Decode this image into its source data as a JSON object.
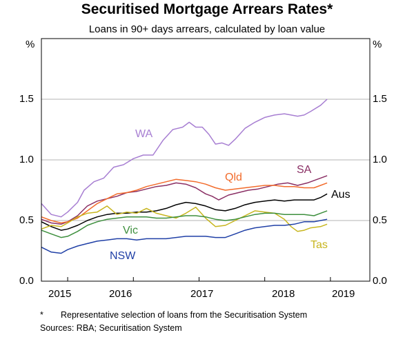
{
  "chart_data": {
    "type": "line",
    "title": "Securitised Mortgage Arrears Rates*",
    "subtitle": "Loans in 90+ days arrears, calculated by loan value",
    "ylabel_left": "%",
    "ylabel_right": "%",
    "ylim": [
      0,
      2.0
    ],
    "yticks": [
      "0.0",
      "0.5",
      "1.0",
      "1.5"
    ],
    "xlim": [
      2014.6,
      2019.6
    ],
    "xticks": [
      "2015",
      "2016",
      "2017",
      "2018",
      "2019"
    ],
    "grid": true,
    "series": [
      {
        "name": "WA",
        "color": "#a77ed2",
        "points": [
          [
            2014.6,
            0.64
          ],
          [
            2014.75,
            0.55
          ],
          [
            2014.9,
            0.53
          ],
          [
            2015.0,
            0.57
          ],
          [
            2015.15,
            0.65
          ],
          [
            2015.25,
            0.75
          ],
          [
            2015.4,
            0.82
          ],
          [
            2015.55,
            0.85
          ],
          [
            2015.7,
            0.94
          ],
          [
            2015.85,
            0.96
          ],
          [
            2016.0,
            1.01
          ],
          [
            2016.15,
            1.04
          ],
          [
            2016.3,
            1.04
          ],
          [
            2016.45,
            1.16
          ],
          [
            2016.6,
            1.25
          ],
          [
            2016.75,
            1.27
          ],
          [
            2016.85,
            1.31
          ],
          [
            2016.95,
            1.27
          ],
          [
            2017.05,
            1.27
          ],
          [
            2017.15,
            1.21
          ],
          [
            2017.25,
            1.13
          ],
          [
            2017.35,
            1.14
          ],
          [
            2017.45,
            1.12
          ],
          [
            2017.55,
            1.17
          ],
          [
            2017.7,
            1.26
          ],
          [
            2017.85,
            1.31
          ],
          [
            2018.0,
            1.35
          ],
          [
            2018.15,
            1.37
          ],
          [
            2018.3,
            1.38
          ],
          [
            2018.4,
            1.37
          ],
          [
            2018.5,
            1.36
          ],
          [
            2018.6,
            1.37
          ],
          [
            2018.7,
            1.4
          ],
          [
            2018.85,
            1.45
          ],
          [
            2018.95,
            1.5
          ]
        ]
      },
      {
        "name": "SA",
        "color": "#8a2f64",
        "points": [
          [
            2014.6,
            0.51
          ],
          [
            2014.75,
            0.48
          ],
          [
            2014.9,
            0.47
          ],
          [
            2015.0,
            0.49
          ],
          [
            2015.15,
            0.54
          ],
          [
            2015.3,
            0.62
          ],
          [
            2015.45,
            0.66
          ],
          [
            2015.6,
            0.68
          ],
          [
            2015.75,
            0.7
          ],
          [
            2015.9,
            0.73
          ],
          [
            2016.05,
            0.74
          ],
          [
            2016.2,
            0.76
          ],
          [
            2016.35,
            0.78
          ],
          [
            2016.5,
            0.79
          ],
          [
            2016.65,
            0.81
          ],
          [
            2016.8,
            0.8
          ],
          [
            2016.95,
            0.77
          ],
          [
            2017.1,
            0.72
          ],
          [
            2017.2,
            0.7
          ],
          [
            2017.3,
            0.67
          ],
          [
            2017.45,
            0.71
          ],
          [
            2017.6,
            0.73
          ],
          [
            2017.75,
            0.75
          ],
          [
            2017.9,
            0.76
          ],
          [
            2018.05,
            0.78
          ],
          [
            2018.2,
            0.8
          ],
          [
            2018.35,
            0.81
          ],
          [
            2018.5,
            0.79
          ],
          [
            2018.65,
            0.81
          ],
          [
            2018.8,
            0.84
          ],
          [
            2018.95,
            0.87
          ]
        ]
      },
      {
        "name": "Qld",
        "color": "#f26b2b",
        "points": [
          [
            2014.6,
            0.53
          ],
          [
            2014.75,
            0.5
          ],
          [
            2014.9,
            0.48
          ],
          [
            2015.0,
            0.49
          ],
          [
            2015.15,
            0.52
          ],
          [
            2015.3,
            0.58
          ],
          [
            2015.45,
            0.64
          ],
          [
            2015.6,
            0.68
          ],
          [
            2015.75,
            0.72
          ],
          [
            2015.9,
            0.73
          ],
          [
            2016.05,
            0.75
          ],
          [
            2016.2,
            0.78
          ],
          [
            2016.35,
            0.8
          ],
          [
            2016.5,
            0.82
          ],
          [
            2016.65,
            0.84
          ],
          [
            2016.8,
            0.83
          ],
          [
            2016.95,
            0.82
          ],
          [
            2017.1,
            0.8
          ],
          [
            2017.25,
            0.77
          ],
          [
            2017.4,
            0.75
          ],
          [
            2017.55,
            0.76
          ],
          [
            2017.7,
            0.77
          ],
          [
            2017.85,
            0.78
          ],
          [
            2018.0,
            0.79
          ],
          [
            2018.15,
            0.79
          ],
          [
            2018.3,
            0.78
          ],
          [
            2018.45,
            0.78
          ],
          [
            2018.6,
            0.77
          ],
          [
            2018.75,
            0.77
          ],
          [
            2018.85,
            0.79
          ],
          [
            2018.95,
            0.81
          ]
        ]
      },
      {
        "name": "Aus",
        "color": "#000000",
        "points": [
          [
            2014.6,
            0.49
          ],
          [
            2014.75,
            0.45
          ],
          [
            2014.9,
            0.42
          ],
          [
            2015.0,
            0.43
          ],
          [
            2015.15,
            0.46
          ],
          [
            2015.3,
            0.5
          ],
          [
            2015.45,
            0.53
          ],
          [
            2015.6,
            0.55
          ],
          [
            2015.75,
            0.56
          ],
          [
            2015.9,
            0.56
          ],
          [
            2016.05,
            0.57
          ],
          [
            2016.2,
            0.57
          ],
          [
            2016.35,
            0.58
          ],
          [
            2016.5,
            0.6
          ],
          [
            2016.65,
            0.63
          ],
          [
            2016.8,
            0.65
          ],
          [
            2016.95,
            0.64
          ],
          [
            2017.1,
            0.62
          ],
          [
            2017.25,
            0.59
          ],
          [
            2017.4,
            0.58
          ],
          [
            2017.55,
            0.6
          ],
          [
            2017.7,
            0.63
          ],
          [
            2017.85,
            0.65
          ],
          [
            2018.0,
            0.66
          ],
          [
            2018.15,
            0.67
          ],
          [
            2018.3,
            0.66
          ],
          [
            2018.45,
            0.67
          ],
          [
            2018.6,
            0.67
          ],
          [
            2018.75,
            0.67
          ],
          [
            2018.85,
            0.69
          ],
          [
            2018.95,
            0.72
          ]
        ]
      },
      {
        "name": "Tas",
        "color": "#c7b51d",
        "points": [
          [
            2014.6,
            0.43
          ],
          [
            2014.75,
            0.46
          ],
          [
            2014.9,
            0.45
          ],
          [
            2015.0,
            0.48
          ],
          [
            2015.15,
            0.53
          ],
          [
            2015.3,
            0.56
          ],
          [
            2015.45,
            0.57
          ],
          [
            2015.6,
            0.62
          ],
          [
            2015.75,
            0.55
          ],
          [
            2015.9,
            0.57
          ],
          [
            2016.05,
            0.56
          ],
          [
            2016.2,
            0.6
          ],
          [
            2016.35,
            0.56
          ],
          [
            2016.5,
            0.54
          ],
          [
            2016.65,
            0.52
          ],
          [
            2016.8,
            0.56
          ],
          [
            2016.95,
            0.61
          ],
          [
            2017.1,
            0.52
          ],
          [
            2017.25,
            0.45
          ],
          [
            2017.4,
            0.46
          ],
          [
            2017.55,
            0.5
          ],
          [
            2017.7,
            0.54
          ],
          [
            2017.85,
            0.58
          ],
          [
            2018.0,
            0.57
          ],
          [
            2018.15,
            0.56
          ],
          [
            2018.3,
            0.51
          ],
          [
            2018.4,
            0.45
          ],
          [
            2018.5,
            0.41
          ],
          [
            2018.6,
            0.42
          ],
          [
            2018.7,
            0.44
          ],
          [
            2018.85,
            0.45
          ],
          [
            2018.95,
            0.47
          ]
        ]
      },
      {
        "name": "Vic",
        "color": "#3d8f3d",
        "points": [
          [
            2014.6,
            0.42
          ],
          [
            2014.75,
            0.39
          ],
          [
            2014.9,
            0.36
          ],
          [
            2015.0,
            0.37
          ],
          [
            2015.15,
            0.41
          ],
          [
            2015.3,
            0.46
          ],
          [
            2015.45,
            0.49
          ],
          [
            2015.6,
            0.51
          ],
          [
            2015.75,
            0.52
          ],
          [
            2015.9,
            0.53
          ],
          [
            2016.05,
            0.53
          ],
          [
            2016.2,
            0.53
          ],
          [
            2016.35,
            0.52
          ],
          [
            2016.5,
            0.52
          ],
          [
            2016.65,
            0.53
          ],
          [
            2016.8,
            0.54
          ],
          [
            2016.95,
            0.54
          ],
          [
            2017.1,
            0.53
          ],
          [
            2017.25,
            0.51
          ],
          [
            2017.4,
            0.5
          ],
          [
            2017.55,
            0.51
          ],
          [
            2017.7,
            0.53
          ],
          [
            2017.85,
            0.55
          ],
          [
            2018.0,
            0.56
          ],
          [
            2018.15,
            0.56
          ],
          [
            2018.3,
            0.55
          ],
          [
            2018.45,
            0.55
          ],
          [
            2018.6,
            0.55
          ],
          [
            2018.75,
            0.54
          ],
          [
            2018.85,
            0.56
          ],
          [
            2018.95,
            0.58
          ]
        ]
      },
      {
        "name": "NSW",
        "color": "#1f3fa6",
        "points": [
          [
            2014.6,
            0.28
          ],
          [
            2014.75,
            0.24
          ],
          [
            2014.9,
            0.23
          ],
          [
            2015.0,
            0.26
          ],
          [
            2015.15,
            0.29
          ],
          [
            2015.3,
            0.31
          ],
          [
            2015.45,
            0.33
          ],
          [
            2015.6,
            0.34
          ],
          [
            2015.75,
            0.35
          ],
          [
            2015.9,
            0.35
          ],
          [
            2016.05,
            0.34
          ],
          [
            2016.2,
            0.35
          ],
          [
            2016.35,
            0.35
          ],
          [
            2016.5,
            0.35
          ],
          [
            2016.65,
            0.36
          ],
          [
            2016.8,
            0.37
          ],
          [
            2016.95,
            0.37
          ],
          [
            2017.1,
            0.37
          ],
          [
            2017.25,
            0.36
          ],
          [
            2017.4,
            0.36
          ],
          [
            2017.55,
            0.39
          ],
          [
            2017.7,
            0.42
          ],
          [
            2017.85,
            0.44
          ],
          [
            2018.0,
            0.45
          ],
          [
            2018.15,
            0.46
          ],
          [
            2018.3,
            0.46
          ],
          [
            2018.45,
            0.47
          ],
          [
            2018.6,
            0.49
          ],
          [
            2018.75,
            0.49
          ],
          [
            2018.85,
            0.5
          ],
          [
            2018.95,
            0.51
          ]
        ]
      }
    ],
    "series_labels": [
      {
        "name": "WA",
        "text": "WA",
        "color": "#a77ed2"
      },
      {
        "name": "SA",
        "text": "SA",
        "color": "#8a2f64"
      },
      {
        "name": "Qld",
        "text": "Qld",
        "color": "#f26b2b"
      },
      {
        "name": "Aus",
        "text": "Aus",
        "color": "#000000"
      },
      {
        "name": "Vic",
        "text": "Vic",
        "color": "#3d8f3d"
      },
      {
        "name": "Tas",
        "text": "Tas",
        "color": "#c7b51d"
      },
      {
        "name": "NSW",
        "text": "NSW",
        "color": "#1f3fa6"
      }
    ]
  },
  "footnote": {
    "marker": "*",
    "note": "Representative selection of loans from the Securitisation System",
    "sources": "Sources:  RBA; Securitisation System"
  }
}
